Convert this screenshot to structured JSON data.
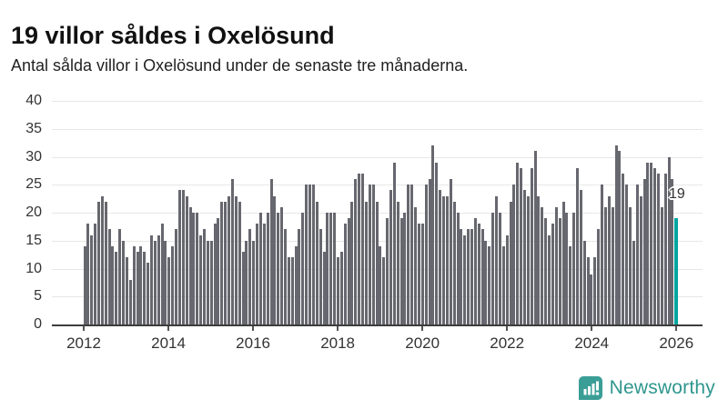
{
  "header": {
    "title": "19 villor såldes i Oxelösund",
    "subtitle": "Antal sålda villor i Oxelösund under de senaste tre månaderna."
  },
  "chart_data": {
    "type": "bar",
    "title": "19 villor såldes i Oxelösund",
    "subtitle": "Antal sålda villor i Oxelösund under de senaste tre månaderna.",
    "unit": "sålda villor per månad (rullande tre månader)",
    "x_start": "2012-01",
    "x_freq": "monthly",
    "series": [
      {
        "name": "Antal sålda villor",
        "values": [
          14,
          18,
          16,
          18,
          22,
          23,
          22,
          17,
          14,
          13,
          17,
          15,
          12,
          8,
          14,
          13,
          14,
          13,
          11,
          16,
          15,
          16,
          18,
          15,
          12,
          14,
          17,
          24,
          24,
          23,
          21,
          20,
          20,
          16,
          17,
          15,
          15,
          18,
          19,
          22,
          22,
          23,
          26,
          23,
          22,
          13,
          15,
          17,
          15,
          18,
          20,
          18,
          20,
          26,
          23,
          20,
          21,
          17,
          12,
          12,
          14,
          17,
          20,
          25,
          25,
          25,
          22,
          17,
          13,
          20,
          20,
          20,
          12,
          13,
          18,
          19,
          22,
          26,
          27,
          27,
          22,
          25,
          25,
          22,
          14,
          12,
          19,
          24,
          29,
          22,
          19,
          20,
          25,
          25,
          21,
          18,
          18,
          25,
          26,
          32,
          29,
          24,
          23,
          23,
          26,
          22,
          20,
          17,
          16,
          17,
          17,
          19,
          18,
          17,
          15,
          14,
          20,
          23,
          20,
          14,
          16,
          22,
          25,
          29,
          28,
          24,
          23,
          28,
          31,
          23,
          21,
          19,
          16,
          18,
          21,
          19,
          22,
          20,
          14,
          20,
          28,
          24,
          15,
          12,
          9,
          12,
          17,
          25,
          21,
          23,
          21,
          32,
          31,
          27,
          25,
          21,
          15,
          25,
          23,
          26,
          29,
          29,
          28,
          27,
          21,
          27,
          30,
          26,
          19
        ]
      }
    ],
    "highlight": {
      "index": 168,
      "value": 19,
      "label": "19",
      "color": "#00a5a0"
    },
    "bar_color": "#67676f",
    "grid": true,
    "ylim": [
      0,
      40
    ],
    "yticks": [
      "0",
      "5",
      "10",
      "15",
      "20",
      "25",
      "30",
      "35",
      "40"
    ],
    "xticks": [
      "2012",
      "2014",
      "2016",
      "2018",
      "2020",
      "2022",
      "2024",
      "2026"
    ],
    "legend": "none"
  },
  "branding": {
    "name": "Newsworthy",
    "icon": "newsworthy-bar-chart-bubble-icon",
    "text_color": "#2f968e",
    "icon_color": "#3a9e96"
  }
}
